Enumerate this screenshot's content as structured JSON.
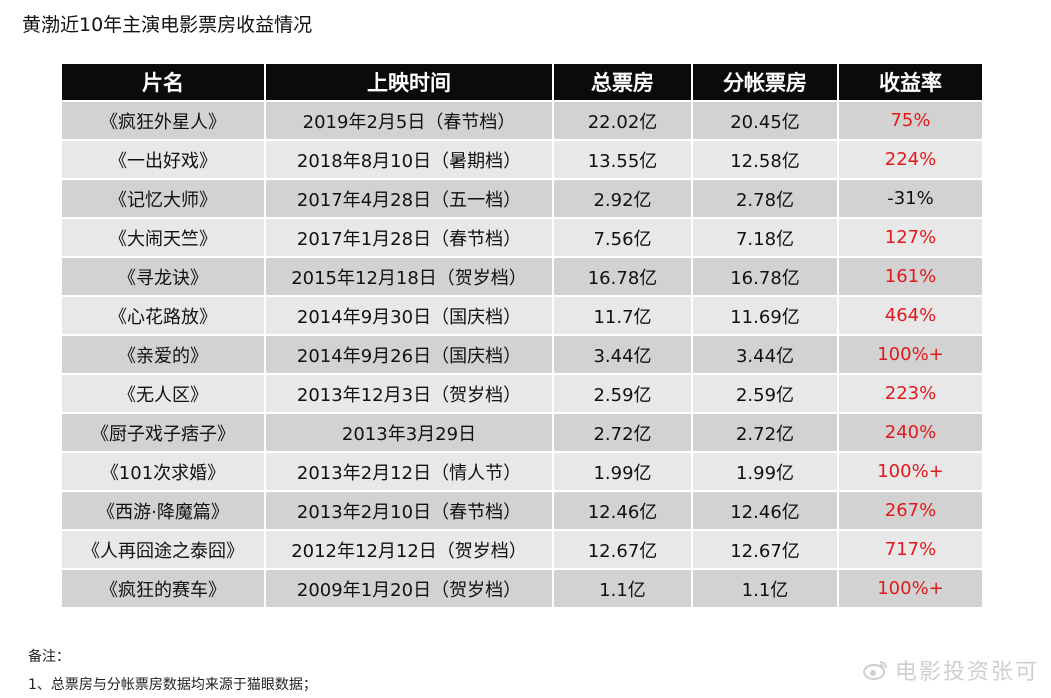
{
  "title": "黄渤近10年主演电影票房收益情况",
  "headers": [
    "片名",
    "上映时间",
    "总票房",
    "分帐票房",
    "收益率"
  ],
  "rows": [
    {
      "name": "《疯狂外星人》",
      "date": "2019年2月5日（春节档）",
      "total": "22.02亿",
      "split": "20.45亿",
      "rate": "75%",
      "rate_color": "#e0191b"
    },
    {
      "name": "《一出好戏》",
      "date": "2018年8月10日（暑期档）",
      "total": "13.55亿",
      "split": "12.58亿",
      "rate": "224%",
      "rate_color": "#e0191b"
    },
    {
      "name": "《记忆大师》",
      "date": "2017年4月28日（五一档）",
      "total": "2.92亿",
      "split": "2.78亿",
      "rate": "-31%",
      "rate_color": "#111111"
    },
    {
      "name": "《大闹天竺》",
      "date": "2017年1月28日（春节档）",
      "total": "7.56亿",
      "split": "7.18亿",
      "rate": "127%",
      "rate_color": "#e0191b"
    },
    {
      "name": "《寻龙诀》",
      "date": "2015年12月18日（贺岁档）",
      "total": "16.78亿",
      "split": "16.78亿",
      "rate": "161%",
      "rate_color": "#e0191b"
    },
    {
      "name": "《心花路放》",
      "date": "2014年9月30日（国庆档）",
      "total": "11.7亿",
      "split": "11.69亿",
      "rate": "464%",
      "rate_color": "#e0191b"
    },
    {
      "name": "《亲爱的》",
      "date": "2014年9月26日（国庆档）",
      "total": "3.44亿",
      "split": "3.44亿",
      "rate": "100%+",
      "rate_color": "#e0191b"
    },
    {
      "name": "《无人区》",
      "date": "2013年12月3日（贺岁档）",
      "total": "2.59亿",
      "split": "2.59亿",
      "rate": "223%",
      "rate_color": "#e0191b"
    },
    {
      "name": "《厨子戏子痞子》",
      "date": "2013年3月29日",
      "total": "2.72亿",
      "split": "2.72亿",
      "rate": "240%",
      "rate_color": "#e0191b"
    },
    {
      "name": "《101次求婚》",
      "date": "2013年2月12日（情人节）",
      "total": "1.99亿",
      "split": "1.99亿",
      "rate": "100%+",
      "rate_color": "#e0191b"
    },
    {
      "name": "《西游·降魔篇》",
      "date": "2013年2月10日（春节档）",
      "total": "12.46亿",
      "split": "12.46亿",
      "rate": "267%",
      "rate_color": "#e0191b"
    },
    {
      "name": "《人再囧途之泰囧》",
      "date": "2012年12月12日（贺岁档）",
      "total": "12.67亿",
      "split": "12.67亿",
      "rate": "717%",
      "rate_color": "#e0191b"
    },
    {
      "name": "《疯狂的赛车》",
      "date": "2009年1月20日（贺岁档）",
      "total": "1.1亿",
      "split": "1.1亿",
      "rate": "100%+",
      "rate_color": "#e0191b"
    }
  ],
  "notes": {
    "label": "备注：",
    "line1": "1、总票房与分帐票房数据均来源于猫眼数据；"
  },
  "watermark": {
    "icon": "weibo-icon",
    "text": "电影投资张可"
  }
}
